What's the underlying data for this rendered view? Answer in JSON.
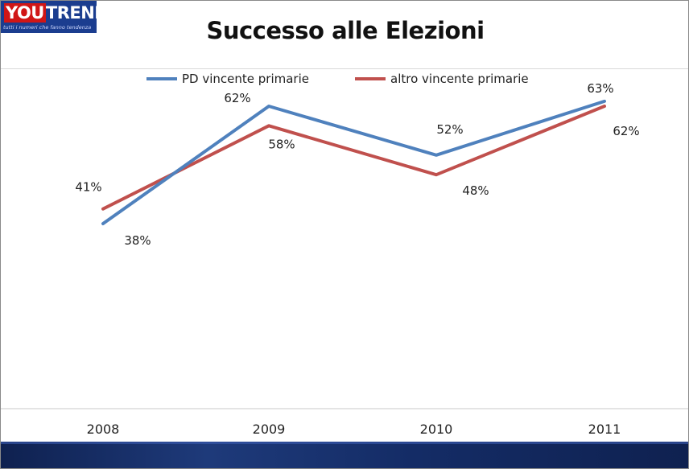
{
  "logo": {
    "word1": "YOU",
    "word2": "TREND",
    "tagline": "tutti i numeri che fanno tendenza"
  },
  "chart_data": {
    "type": "line",
    "title": "Successo alle Elezioni",
    "categories": [
      "2008",
      "2009",
      "2010",
      "2011"
    ],
    "series": [
      {
        "name": "PD vincente primarie",
        "values": [
          38,
          62,
          52,
          63
        ],
        "labels": [
          "38%",
          "62%",
          "52%",
          "63%"
        ],
        "color": "#4f81bd"
      },
      {
        "name": "altro vincente primarie",
        "values": [
          41,
          58,
          48,
          62
        ],
        "labels": [
          "41%",
          "58%",
          "48%",
          "62%"
        ],
        "color": "#c0504d"
      }
    ],
    "unit": "%",
    "legend_position": "top",
    "grid": false
  }
}
